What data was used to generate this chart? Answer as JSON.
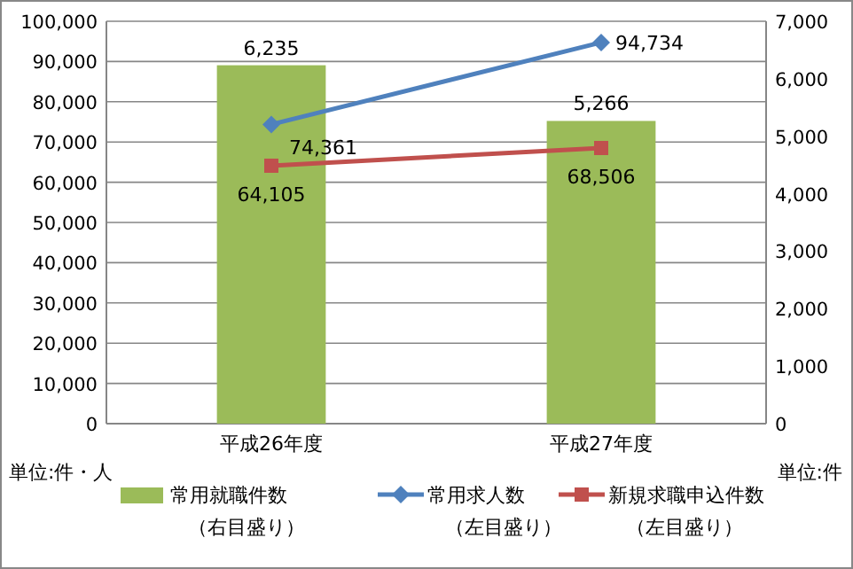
{
  "chart_data": {
    "type": "bar",
    "categories": [
      "平成26年度",
      "平成27年度"
    ],
    "series": [
      {
        "name": "常用就職件数（右目盛り）",
        "axis": "y2",
        "color": "#9bbb59",
        "values": [
          6235,
          5266
        ],
        "value_labels": [
          "6,235",
          "5,266"
        ]
      },
      {
        "name": "常用求人数（左目盛り）",
        "type": "line",
        "color": "#4f81bd",
        "marker": "diamond",
        "values": [
          74361,
          94734
        ],
        "value_labels": [
          "74,361",
          "94,734"
        ]
      },
      {
        "name": "新規求職申込件数（左目盛り）",
        "type": "line",
        "color": "#c0504d",
        "marker": "square",
        "values": [
          64105,
          68506
        ],
        "value_labels": [
          "64,105",
          "68,506"
        ]
      }
    ],
    "ylim": [
      0,
      100000
    ],
    "yticks": [
      {
        "value": 0,
        "label": "0"
      },
      {
        "value": 10000,
        "label": "10,000"
      },
      {
        "value": 20000,
        "label": "20,000"
      },
      {
        "value": 30000,
        "label": "30,000"
      },
      {
        "value": 40000,
        "label": "40,000"
      },
      {
        "value": 50000,
        "label": "50,000"
      },
      {
        "value": 60000,
        "label": "60,000"
      },
      {
        "value": 70000,
        "label": "70,000"
      },
      {
        "value": 80000,
        "label": "80,000"
      },
      {
        "value": 90000,
        "label": "90,000"
      },
      {
        "value": 100000,
        "label": "100,000"
      }
    ],
    "y2lim": [
      0,
      7000
    ],
    "y2ticks": [
      {
        "value": 0,
        "label": "0"
      },
      {
        "value": 1000,
        "label": "1,000"
      },
      {
        "value": 2000,
        "label": "2,000"
      },
      {
        "value": 3000,
        "label": "3,000"
      },
      {
        "value": 4000,
        "label": "4,000"
      },
      {
        "value": 5000,
        "label": "5,000"
      },
      {
        "value": 6000,
        "label": "6,000"
      },
      {
        "value": 7000,
        "label": "7,000"
      }
    ],
    "grid": "y",
    "legend": "bottom",
    "annotations": [
      "単位:件・人",
      "単位:件"
    ]
  }
}
